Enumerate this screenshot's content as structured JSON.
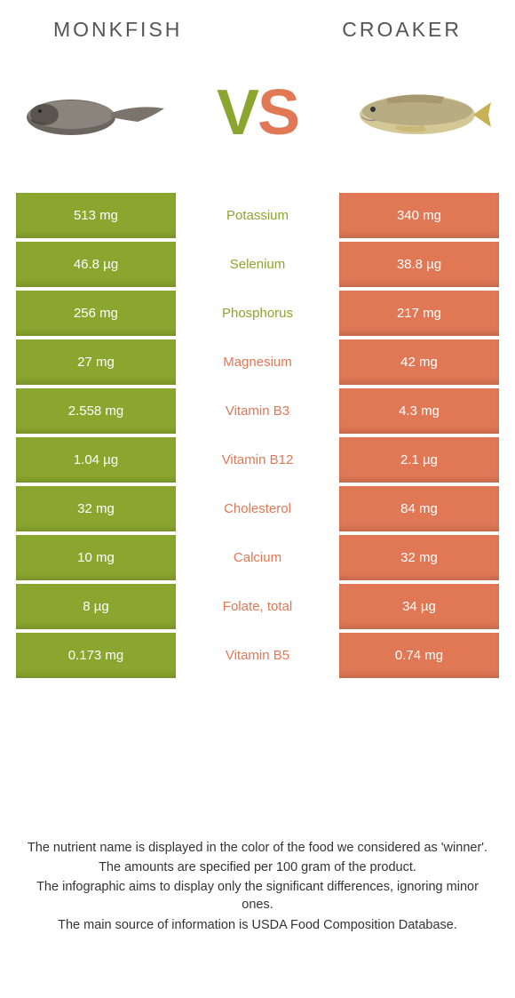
{
  "colors": {
    "left": "#8aa62f",
    "right": "#e07856",
    "bg": "#ffffff"
  },
  "header": {
    "left_title": "Monkfish",
    "right_title": "Croaker"
  },
  "vs": {
    "v": "V",
    "s": "S"
  },
  "rows": [
    {
      "left": "513 mg",
      "label": "Potassium",
      "right": "340 mg",
      "winner": "left"
    },
    {
      "left": "46.8 µg",
      "label": "Selenium",
      "right": "38.8 µg",
      "winner": "left"
    },
    {
      "left": "256 mg",
      "label": "Phosphorus",
      "right": "217 mg",
      "winner": "left"
    },
    {
      "left": "27 mg",
      "label": "Magnesium",
      "right": "42 mg",
      "winner": "right"
    },
    {
      "left": "2.558 mg",
      "label": "Vitamin B3",
      "right": "4.3 mg",
      "winner": "right"
    },
    {
      "left": "1.04 µg",
      "label": "Vitamin B12",
      "right": "2.1 µg",
      "winner": "right"
    },
    {
      "left": "32 mg",
      "label": "Cholesterol",
      "right": "84 mg",
      "winner": "right"
    },
    {
      "left": "10 mg",
      "label": "Calcium",
      "right": "32 mg",
      "winner": "right"
    },
    {
      "left": "8 µg",
      "label": "Folate, total",
      "right": "34 µg",
      "winner": "right"
    },
    {
      "left": "0.173 mg",
      "label": "Vitamin B5",
      "right": "0.74 mg",
      "winner": "right"
    }
  ],
  "footer": {
    "l1": "The nutrient name is displayed in the color of the food we considered as 'winner'.",
    "l2": "The amounts are specified per 100 gram of the product.",
    "l3": "The infographic aims to display only the significant differences, ignoring minor ones.",
    "l4": "The main source of information is USDA Food Composition Database."
  }
}
